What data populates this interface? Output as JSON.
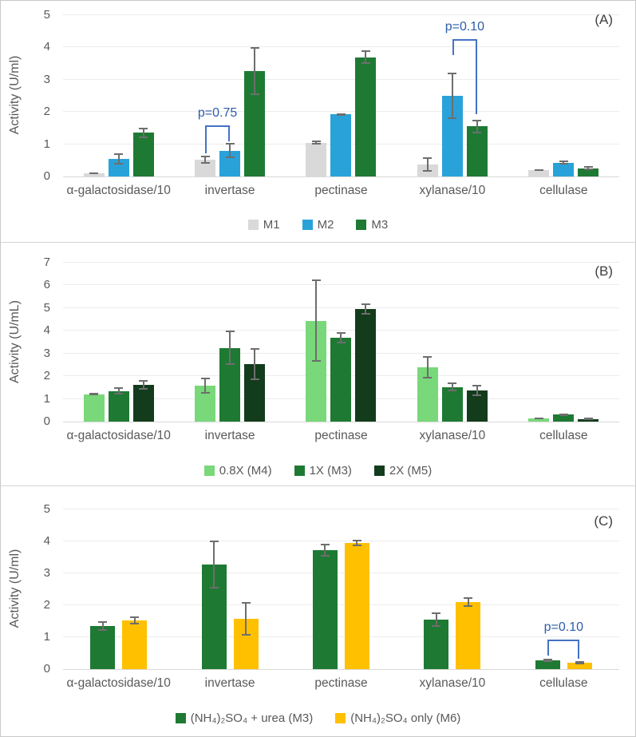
{
  "colors": {
    "grid": "#ececec",
    "axis_line": "#d9d9d9",
    "axis_text": "#595959",
    "error_bar": "#6e6e6e",
    "bracket": "#4472c4",
    "p_value_text": "#2e5cab",
    "panel_border": "#d5d5d5",
    "series_gray": "#d9d9d9",
    "series_blue": "#29a2da",
    "series_green": "#1e7a33",
    "series_light_green": "#79d879",
    "series_dark_green": "#123c1c",
    "series_gold": "#ffc000"
  },
  "chart_data": [
    {
      "type": "bar",
      "panel_label": "(A)",
      "ylabel": "Activity (U/ml)",
      "ylim": [
        0,
        5
      ],
      "yticks": [
        0,
        1,
        2,
        3,
        4,
        5
      ],
      "grid": true,
      "legend_position": "bottom",
      "categories": [
        "α-galactosidase/10",
        "invertase",
        "pectinase",
        "xylanase/10",
        "cellulase"
      ],
      "series": [
        {
          "name": "M1",
          "color": "#d9d9d9",
          "values": [
            0.1,
            0.52,
            1.05,
            0.38,
            0.2
          ],
          "errors": [
            0.03,
            0.13,
            0.07,
            0.22,
            0.03
          ]
        },
        {
          "name": "M2",
          "color": "#29a2da",
          "values": [
            0.55,
            0.8,
            1.92,
            2.5,
            0.43
          ],
          "errors": [
            0.18,
            0.23,
            0.03,
            0.72,
            0.07
          ]
        },
        {
          "name": "M3",
          "color": "#1e7a33",
          "values": [
            1.35,
            3.27,
            3.7,
            1.55,
            0.26
          ],
          "errors": [
            0.15,
            0.75,
            0.22,
            0.22,
            0.05
          ]
        }
      ],
      "annotations": [
        {
          "text": "p=0.75",
          "category": 1,
          "series_a": 0,
          "series_b": 1,
          "top": 1.58,
          "leg_a": 0.75,
          "leg_b": 1.12
        },
        {
          "text": "p=0.10",
          "category": 3,
          "series_a": 1,
          "series_b": 2,
          "top": 4.25,
          "leg_a": 3.78,
          "leg_b": 1.95
        }
      ]
    },
    {
      "type": "bar",
      "panel_label": "(B)",
      "ylabel": "Activity (U/mL)",
      "ylim": [
        0,
        7
      ],
      "yticks": [
        0,
        1,
        2,
        3,
        4,
        5,
        6,
        7
      ],
      "grid": true,
      "legend_position": "bottom",
      "categories": [
        "α-galactosidase/10",
        "invertase",
        "pectinase",
        "xylanase/10",
        "cellulase"
      ],
      "series": [
        {
          "name": "0.8X (M4)",
          "color": "#79d879",
          "values": [
            1.2,
            1.58,
            4.45,
            2.4,
            0.15
          ],
          "errors": [
            0.05,
            0.35,
            1.8,
            0.5,
            0.04
          ]
        },
        {
          "name": "1X (M3)",
          "color": "#1e7a33",
          "values": [
            1.35,
            3.25,
            3.7,
            1.52,
            0.3
          ],
          "errors": [
            0.15,
            0.75,
            0.25,
            0.2,
            0.06
          ]
        },
        {
          "name": "2X (M5)",
          "color": "#123c1c",
          "values": [
            1.62,
            2.52,
            4.95,
            1.38,
            0.12
          ],
          "errors": [
            0.22,
            0.7,
            0.25,
            0.25,
            0.04
          ]
        }
      ],
      "annotations": []
    },
    {
      "type": "bar",
      "panel_label": "(C)",
      "ylabel": "Activity (U/ml)",
      "ylim": [
        0,
        5
      ],
      "yticks": [
        0,
        1,
        2,
        3,
        4,
        5
      ],
      "grid": true,
      "legend_position": "bottom",
      "categories": [
        "α-galactosidase/10",
        "invertase",
        "pectinase",
        "xylanase/10",
        "cellulase"
      ],
      "series": [
        {
          "name": "(NH₄)₂SO₄ + urea (M3)",
          "color": "#1e7a33",
          "values": [
            1.35,
            3.27,
            3.72,
            1.55,
            0.28
          ],
          "errors": [
            0.15,
            0.75,
            0.2,
            0.22,
            0.05
          ]
        },
        {
          "name": "(NH₄)₂SO₄ only (M6)",
          "color": "#ffc000",
          "values": [
            1.52,
            1.58,
            3.95,
            2.1,
            0.2
          ],
          "errors": [
            0.12,
            0.53,
            0.1,
            0.15,
            0.04
          ]
        }
      ],
      "annotations": [
        {
          "text": "p=0.10",
          "category": 4,
          "series_a": 0,
          "series_b": 1,
          "top": 0.92,
          "leg_a": 0.45,
          "leg_b": 0.35
        }
      ]
    }
  ]
}
